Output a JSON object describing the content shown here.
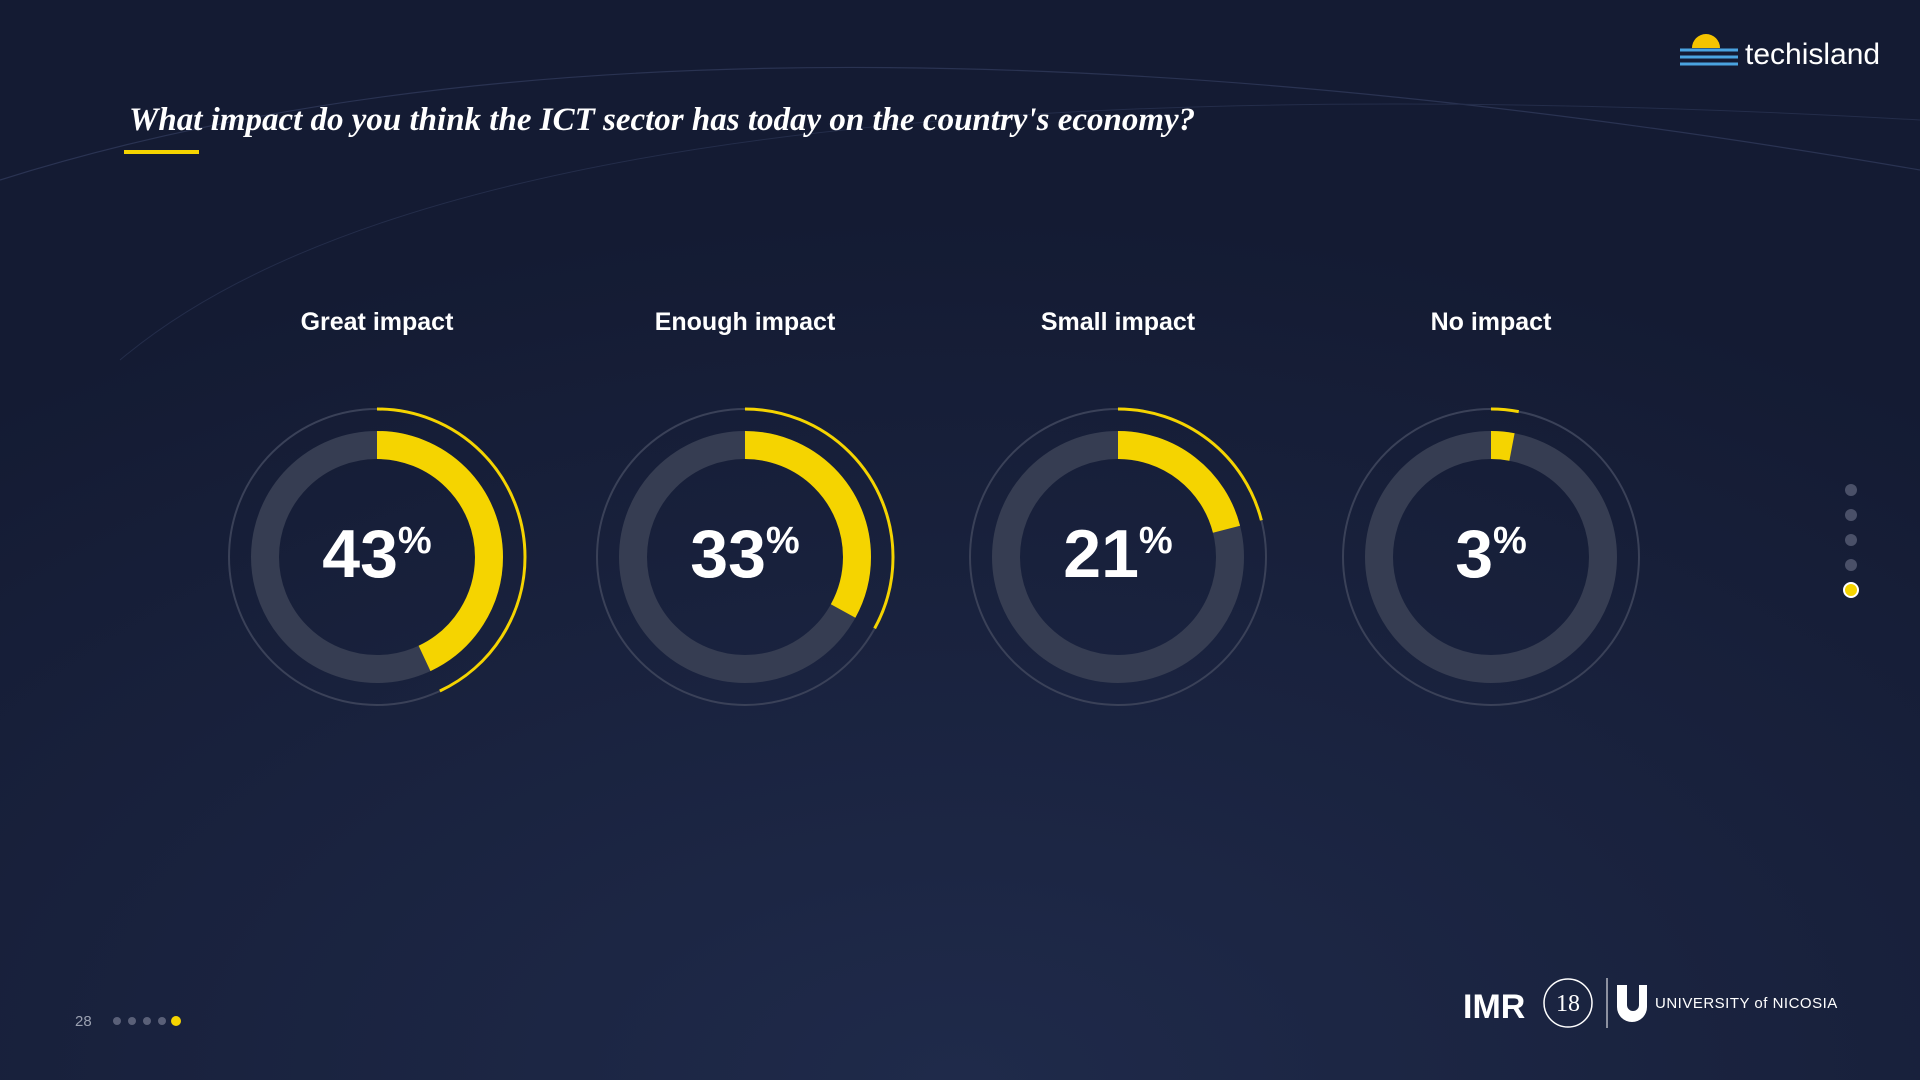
{
  "chart_data": {
    "type": "donut",
    "title": "What impact do you think the ICT sector has today on the country's economy?",
    "categories": [
      "Great impact",
      "Enough impact",
      "Small impact",
      "No impact"
    ],
    "values": [
      43,
      33,
      21,
      3
    ],
    "value_labels": [
      "43%",
      "33%",
      "21%",
      "3%"
    ],
    "color": "#f5d400"
  },
  "page": {
    "logo": "techisland",
    "page_number": 28,
    "footer_logos": [
      "IMR",
      "18",
      "UNIVERSITY of NICOSIA"
    ]
  }
}
